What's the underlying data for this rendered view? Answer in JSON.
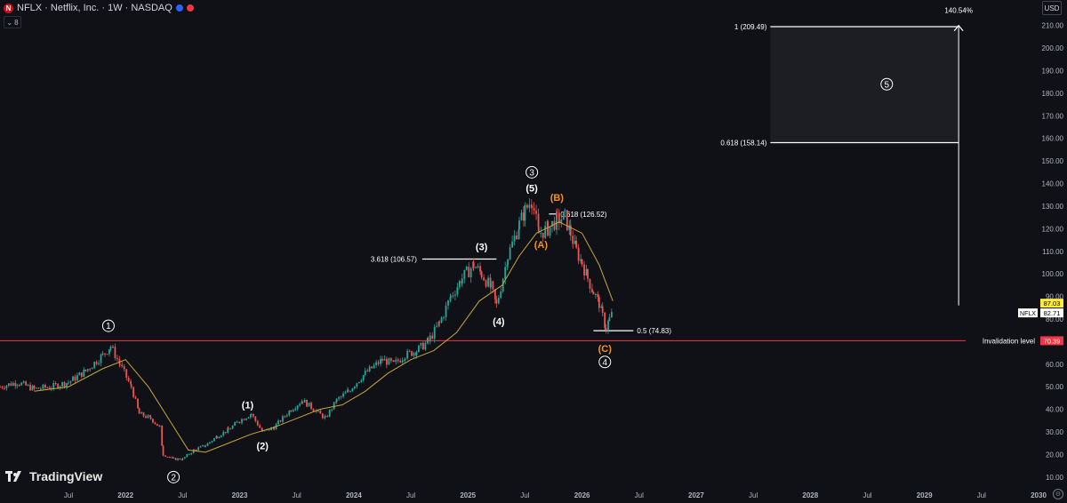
{
  "header": {
    "title": "NFLX · Netflix, Inc. · 1W · NASDAQ",
    "logo_letter": "N",
    "collapse_count": "8",
    "currency": "USD"
  },
  "branding": {
    "name": "TradingView"
  },
  "colors": {
    "background": "#0f1116",
    "up": "#26a69a",
    "down": "#ef5350",
    "ma": "#c8a53a",
    "invalidation": "#f23645",
    "wave_orange": "#f7931a"
  },
  "chart_data": {
    "type": "candlestick",
    "symbol": "NFLX",
    "x_ticks": [
      "Jul",
      "2022",
      "Jul",
      "2023",
      "Jul",
      "2024",
      "Jul",
      "2025",
      "Jul",
      "2026",
      "Jul",
      "2027",
      "Jul",
      "2028",
      "Jul",
      "2029",
      "Jul",
      "2030"
    ],
    "y_ticks": [
      "10.00",
      "20.00",
      "30.00",
      "40.00",
      "50.00",
      "60.00",
      "70.00",
      "80.00",
      "90.00",
      "100.00",
      "110.00",
      "120.00",
      "130.00",
      "140.00",
      "150.00",
      "160.00",
      "170.00",
      "180.00",
      "190.00",
      "200.00",
      "210.00"
    ],
    "ylim": [
      6,
      215
    ],
    "xlim": [
      2020.9,
      2030.0
    ],
    "price_path": [
      [
        2020.9,
        50
      ],
      [
        2021.05,
        52
      ],
      [
        2021.2,
        49
      ],
      [
        2021.35,
        50
      ],
      [
        2021.5,
        52
      ],
      [
        2021.65,
        57
      ],
      [
        2021.8,
        64
      ],
      [
        2021.87,
        68
      ],
      [
        2021.95,
        60
      ],
      [
        2022.05,
        50
      ],
      [
        2022.12,
        38
      ],
      [
        2022.22,
        36
      ],
      [
        2022.3,
        32
      ],
      [
        2022.33,
        20
      ],
      [
        2022.42,
        18
      ],
      [
        2022.5,
        18
      ],
      [
        2022.6,
        22
      ],
      [
        2022.7,
        24
      ],
      [
        2022.8,
        28
      ],
      [
        2022.9,
        31
      ],
      [
        2023.0,
        35
      ],
      [
        2023.1,
        38
      ],
      [
        2023.2,
        30
      ],
      [
        2023.3,
        32
      ],
      [
        2023.45,
        40
      ],
      [
        2023.55,
        44
      ],
      [
        2023.65,
        40
      ],
      [
        2023.75,
        36
      ],
      [
        2023.85,
        44
      ],
      [
        2023.95,
        48
      ],
      [
        2024.1,
        56
      ],
      [
        2024.25,
        62
      ],
      [
        2024.35,
        60
      ],
      [
        2024.45,
        64
      ],
      [
        2024.55,
        66
      ],
      [
        2024.65,
        70
      ],
      [
        2024.75,
        78
      ],
      [
        2024.85,
        90
      ],
      [
        2024.95,
        98
      ],
      [
        2025.05,
        104
      ],
      [
        2025.12,
        100
      ],
      [
        2025.2,
        94
      ],
      [
        2025.25,
        86
      ],
      [
        2025.35,
        108
      ],
      [
        2025.45,
        122
      ],
      [
        2025.5,
        128
      ],
      [
        2025.56,
        133
      ],
      [
        2025.62,
        118
      ],
      [
        2025.7,
        120
      ],
      [
        2025.78,
        124
      ],
      [
        2025.85,
        125
      ],
      [
        2025.9,
        118
      ],
      [
        2025.95,
        110
      ],
      [
        2026.0,
        105
      ],
      [
        2026.05,
        98
      ],
      [
        2026.1,
        92
      ],
      [
        2026.15,
        87
      ],
      [
        2026.18,
        81
      ],
      [
        2026.21,
        76
      ],
      [
        2026.24,
        80
      ],
      [
        2026.27,
        82.71
      ]
    ],
    "moving_average": [
      [
        2021.2,
        48
      ],
      [
        2021.5,
        50
      ],
      [
        2021.8,
        58
      ],
      [
        2022.0,
        62
      ],
      [
        2022.2,
        50
      ],
      [
        2022.4,
        34
      ],
      [
        2022.55,
        22
      ],
      [
        2022.7,
        21
      ],
      [
        2022.9,
        25
      ],
      [
        2023.1,
        29
      ],
      [
        2023.3,
        32
      ],
      [
        2023.5,
        36
      ],
      [
        2023.7,
        40
      ],
      [
        2023.9,
        42
      ],
      [
        2024.1,
        48
      ],
      [
        2024.3,
        56
      ],
      [
        2024.5,
        62
      ],
      [
        2024.7,
        66
      ],
      [
        2024.9,
        74
      ],
      [
        2025.1,
        88
      ],
      [
        2025.3,
        95
      ],
      [
        2025.45,
        108
      ],
      [
        2025.6,
        118
      ],
      [
        2025.8,
        123
      ],
      [
        2026.0,
        118
      ],
      [
        2026.15,
        104
      ],
      [
        2026.27,
        88
      ]
    ],
    "wave_labels": [
      {
        "text": "1",
        "circled": true,
        "x": 2021.85,
        "y": 77,
        "color": "#ffffff"
      },
      {
        "text": "2",
        "circled": true,
        "x": 2022.42,
        "y": 10,
        "color": "#ffffff"
      },
      {
        "text": "(1)",
        "circled": false,
        "x": 2023.07,
        "y": 42,
        "color": "#ffffff"
      },
      {
        "text": "(2)",
        "circled": false,
        "x": 2023.2,
        "y": 24,
        "color": "#ffffff"
      },
      {
        "text": "(3)",
        "circled": false,
        "x": 2025.12,
        "y": 112,
        "color": "#ffffff"
      },
      {
        "text": "(4)",
        "circled": false,
        "x": 2025.27,
        "y": 79,
        "color": "#ffffff"
      },
      {
        "text": "3",
        "circled": true,
        "x": 2025.56,
        "y": 145,
        "color": "#ffffff"
      },
      {
        "text": "(5)",
        "circled": false,
        "x": 2025.56,
        "y": 138,
        "color": "#ffffff"
      },
      {
        "text": "(B)",
        "circled": false,
        "x": 2025.78,
        "y": 134,
        "color": "#f7931a"
      },
      {
        "text": "(A)",
        "circled": false,
        "x": 2025.64,
        "y": 113,
        "color": "#f7931a"
      },
      {
        "text": "(C)",
        "circled": false,
        "x": 2026.2,
        "y": 67,
        "color": "#f7931a"
      },
      {
        "text": "4",
        "circled": true,
        "x": 2026.2,
        "y": 61,
        "color": "#ffffff"
      },
      {
        "text": "5",
        "circled": true,
        "x": 2028.67,
        "y": 184,
        "color": "#ffffff"
      }
    ],
    "fib_levels": [
      {
        "label": "3.618 (106.57)",
        "value": 106.57,
        "x_start": 2024.6,
        "x_end": 2025.25
      },
      {
        "label": "0.618 (126.52)",
        "value": 126.52,
        "x_start": 2025.71,
        "x_end": 2025.78
      },
      {
        "label": "0.5 (74.83)",
        "value": 74.83,
        "x_start": 2026.1,
        "x_end": 2026.45
      },
      {
        "label": "1 (209.49)",
        "value": 209.49,
        "x_start": 2027.65,
        "x_end": 2029.3
      },
      {
        "label": "0.618 (158.14)",
        "value": 158.14,
        "x_start": 2027.65,
        "x_end": 2029.3
      }
    ],
    "target_box": {
      "x_start": 2027.65,
      "x_end": 2029.3,
      "y_low": 158.14,
      "y_high": 209.49
    },
    "projection": {
      "x": 2029.3,
      "y_from": 86,
      "y_to": 210,
      "label": "140.54%"
    },
    "invalidation": {
      "label": "Invalidation level",
      "value": 70.39,
      "price_label": "70.39"
    },
    "price_labels": [
      {
        "text": "87.03",
        "value": 87.03,
        "style": "yellow"
      },
      {
        "text": "82.71",
        "value": 82.71,
        "style": "white",
        "tag": "NFLX"
      }
    ]
  }
}
